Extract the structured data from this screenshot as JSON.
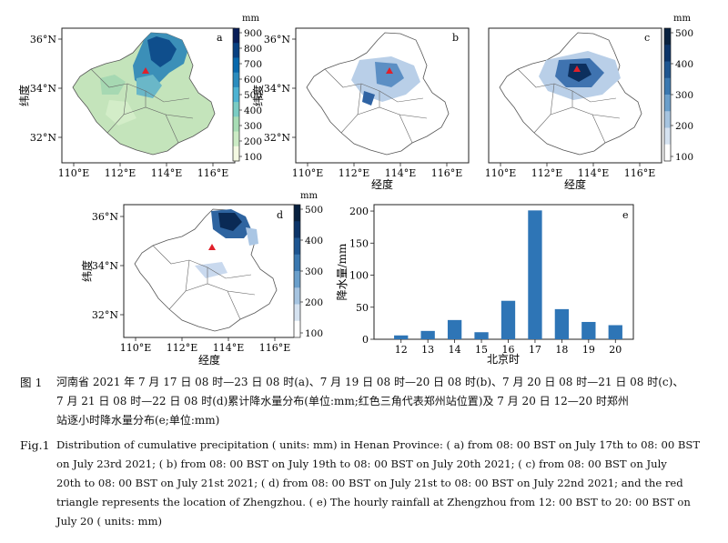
{
  "maps": {
    "a": {
      "letter": "a",
      "xticks": [
        "110°E",
        "112°E",
        "114°E",
        "116°E"
      ],
      "yticks": [
        "36°N",
        "34°N",
        "32°N"
      ],
      "xlabel": "",
      "ylabel": "纬度",
      "cbar": {
        "unit": "mm",
        "ticks": [
          "900",
          "800",
          "700",
          "600",
          "500",
          "400",
          "300",
          "200",
          "100"
        ],
        "colors": [
          "#f4f9e2",
          "#ccebc5",
          "#a8ddb5",
          "#7bccc4",
          "#4eb3d3",
          "#2b8cbe",
          "#0868ac",
          "#084081",
          "#081d58"
        ]
      }
    },
    "b": {
      "letter": "b",
      "xticks": [
        "110°E",
        "112°E",
        "114°E",
        "116°E"
      ],
      "yticks": [
        "36°N",
        "34°N",
        "32°N"
      ],
      "xlabel": "经度",
      "ylabel": "纬度"
    },
    "c": {
      "letter": "c",
      "xticks": [
        "110°E",
        "112°E",
        "114°E",
        "116°E"
      ],
      "yticks": [],
      "xlabel": "经度",
      "ylabel": "",
      "cbar": {
        "unit": "mm",
        "ticks": [
          "500",
          "400",
          "300",
          "200",
          "100"
        ],
        "colors": [
          "#ffffff",
          "#d5e2f0",
          "#a6c4e0",
          "#6a9fcb",
          "#3a78b0",
          "#1d5590",
          "#0b3468",
          "#08213f"
        ]
      }
    },
    "d": {
      "letter": "d",
      "xticks": [
        "110°E",
        "112°E",
        "114°E",
        "116°E"
      ],
      "yticks": [
        "36°N",
        "34°N",
        "32°N"
      ],
      "xlabel": "经度",
      "ylabel": "纬度",
      "cbar": {
        "unit": "mm",
        "ticks": [
          "500",
          "400",
          "300",
          "200",
          "100"
        ],
        "colors": [
          "#ffffff",
          "#d5e2f0",
          "#a6c4e0",
          "#6a9fcb",
          "#3a78b0",
          "#1d5590",
          "#0b3468",
          "#08213f"
        ]
      }
    }
  },
  "chart_data": {
    "type": "bar",
    "title": "",
    "panel_letter": "e",
    "categories": [
      "12",
      "13",
      "14",
      "15",
      "16",
      "17",
      "18",
      "19",
      "20"
    ],
    "values": [
      6,
      13,
      30,
      11,
      60,
      201,
      47,
      27,
      22
    ],
    "xlabel": "北京时",
    "ylabel": "降水量/mm",
    "ylim": [
      0,
      210
    ],
    "yticks": [
      0,
      50,
      100,
      150,
      200
    ],
    "bar_color": "#2e75b6"
  },
  "caption": {
    "cn_label": "图 1",
    "cn_line1": "河南省 2021 年 7 月 17 日 08 时—23 日 08 时(a)、7 月 19 日 08 时—20 日 08 时(b)、7 月 20 日 08 时—21 日 08 时(c)、",
    "cn_line2": "7 月 21 日 08 时—22 日 08 时(d)累计降水量分布(单位:mm;红色三角代表郑州站位置)及 7 月 20 日 12—20 时郑州",
    "cn_line3": "站逐小时降水量分布(e;单位:mm)",
    "en_label": "Fig.1",
    "en_line1": "Distribution of cumulative precipitation ( units: mm) in Henan Province: ( a) from 08: 00 BST on July 17th to 08: 00 BST",
    "en_line2": "on July 23rd 2021; ( b) from 08: 00 BST on July 19th to 08: 00 BST on July 20th 2021; ( c) from 08: 00 BST on July",
    "en_line3": "20th to 08: 00 BST on July 21st 2021; ( d) from 08: 00 BST on July 21st to 08: 00 BST on July 22nd 2021; and the red",
    "en_line4": "triangle represents the location of Zhengzhou. ( e) The hourly rainfall at Zhengzhou from 12: 00 BST to 20: 00 BST on",
    "en_line5": "July 20 ( units: mm)"
  }
}
